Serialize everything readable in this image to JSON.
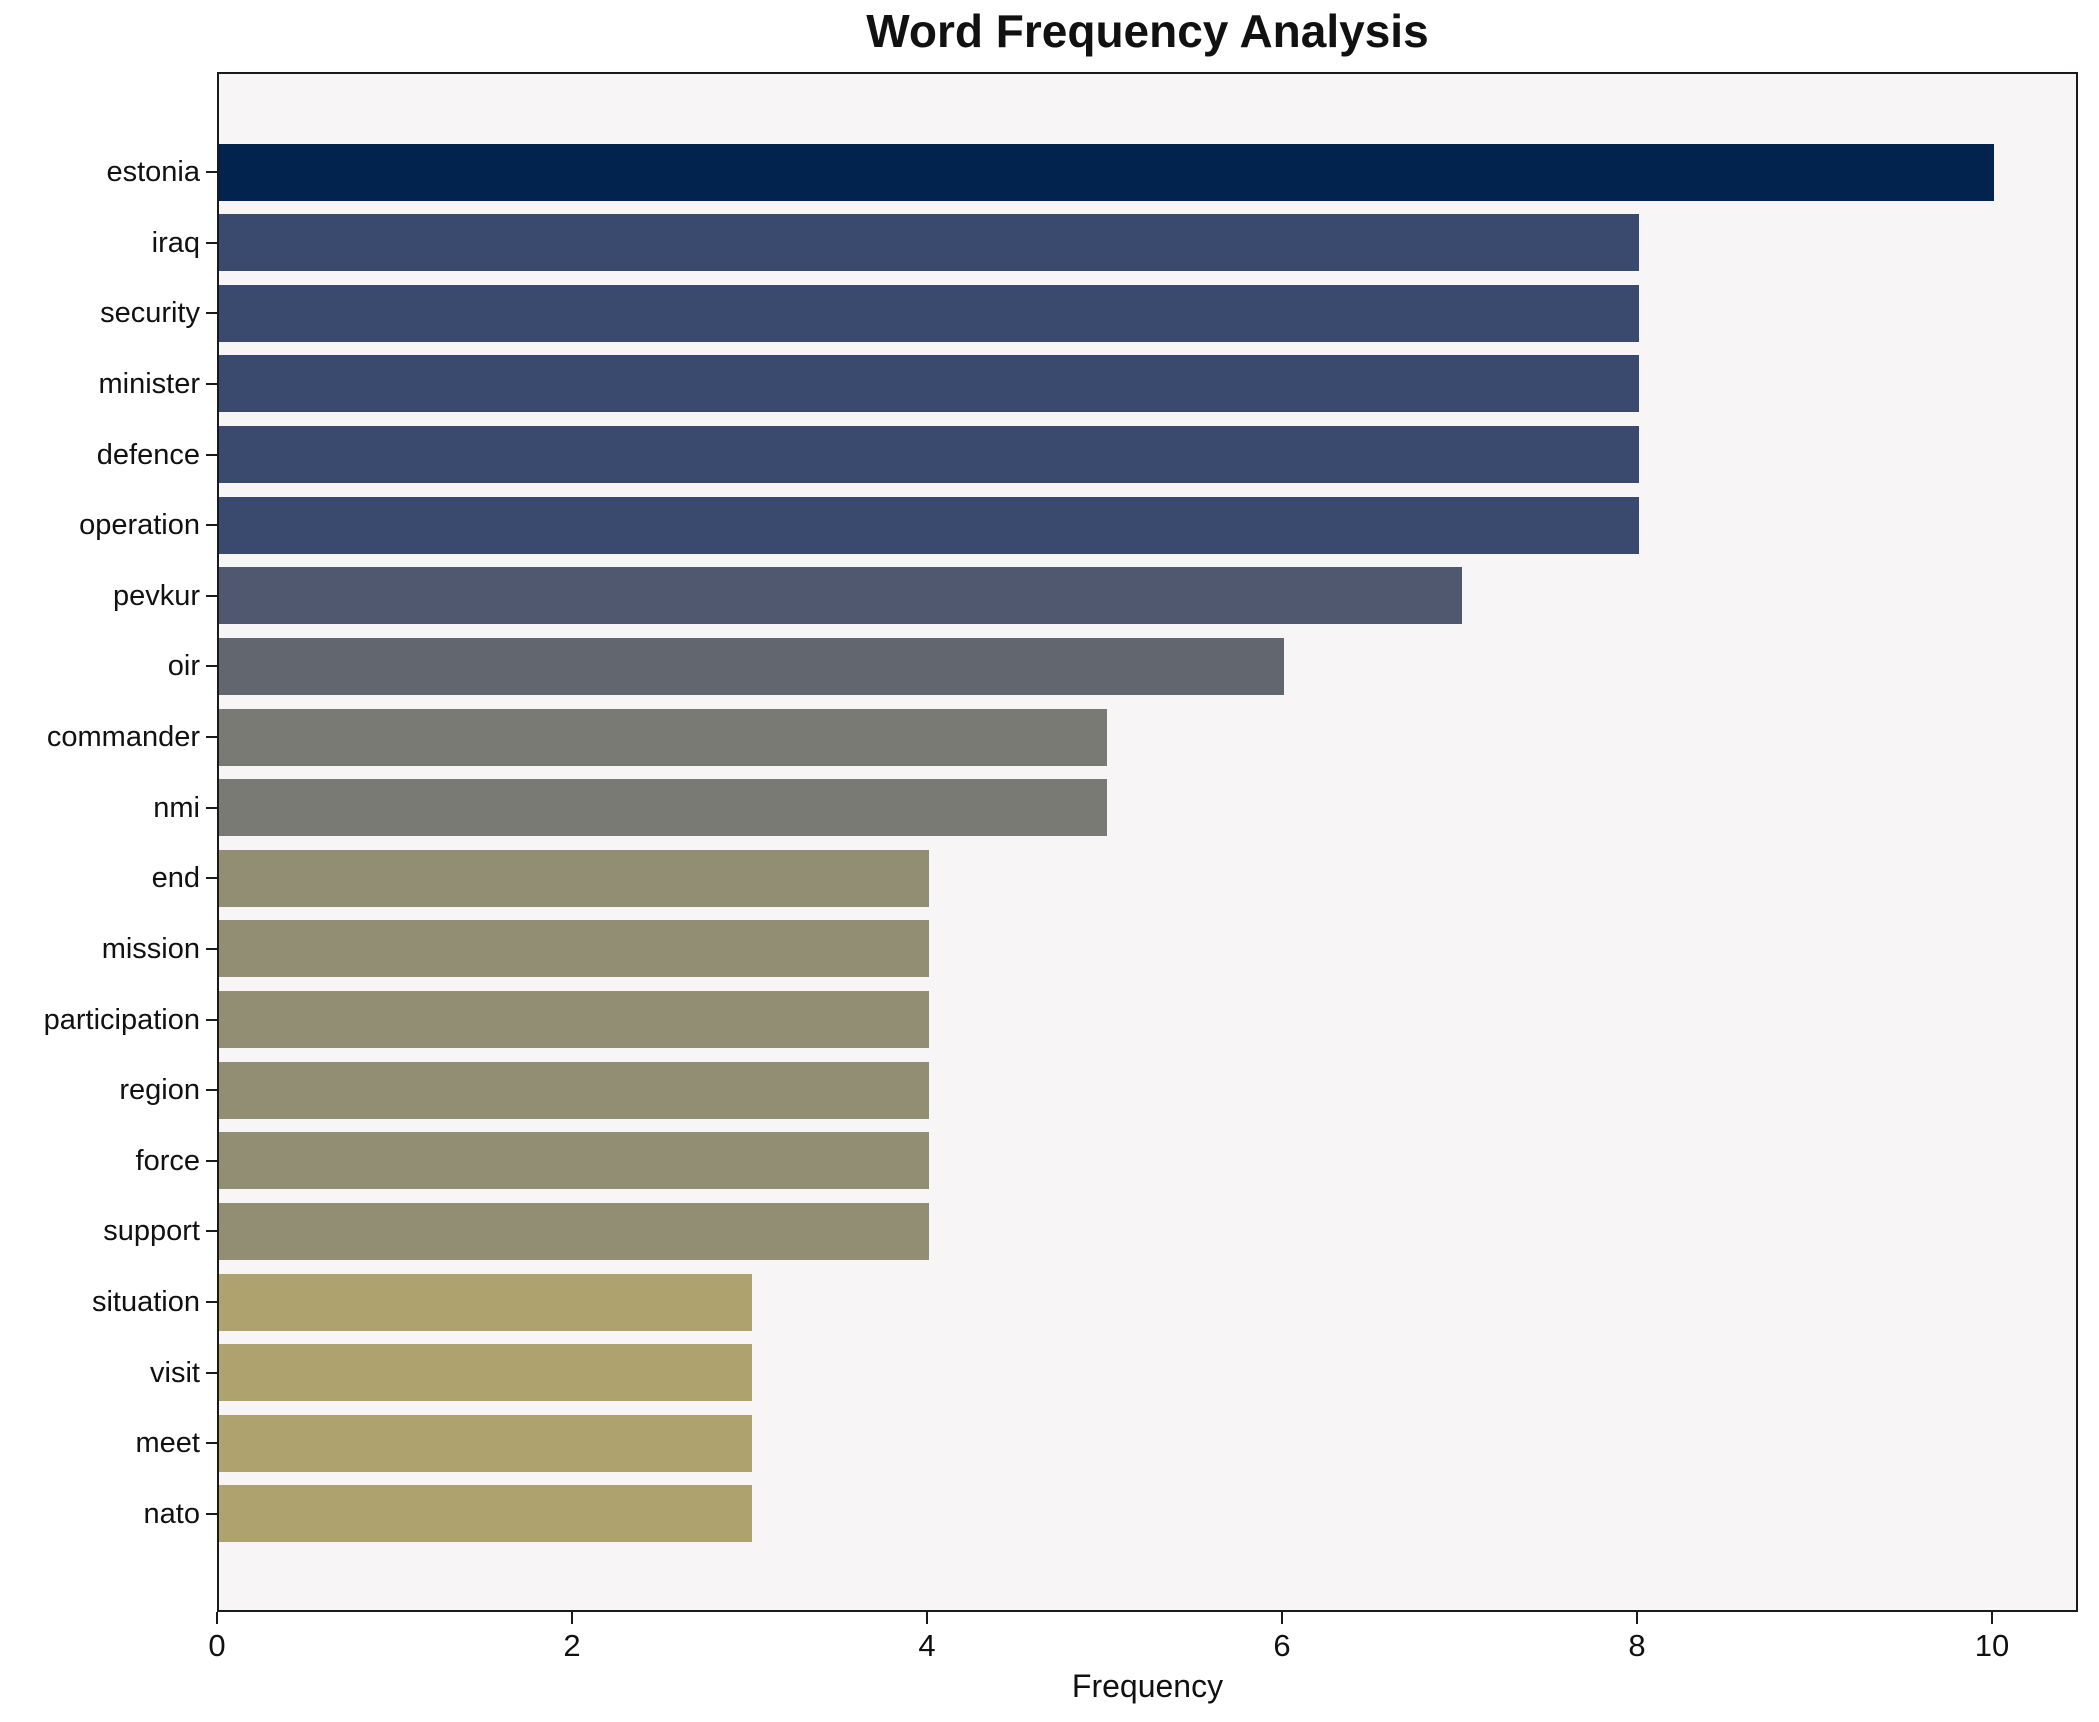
{
  "title": "Word Frequency Analysis",
  "chart_data": {
    "type": "bar",
    "orientation": "horizontal",
    "title": "Word Frequency Analysis",
    "xlabel": "Frequency",
    "ylabel": "",
    "categories": [
      "estonia",
      "iraq",
      "security",
      "minister",
      "defence",
      "operation",
      "pevkur",
      "oir",
      "commander",
      "nmi",
      "end",
      "mission",
      "participation",
      "region",
      "force",
      "support",
      "situation",
      "visit",
      "meet",
      "nato"
    ],
    "values": [
      10,
      8,
      8,
      8,
      8,
      8,
      7,
      6,
      5,
      5,
      4,
      4,
      4,
      4,
      4,
      4,
      3,
      3,
      3,
      3
    ],
    "bar_colors": [
      "#01234e",
      "#3a4a6e",
      "#3a4a6e",
      "#3a4a6e",
      "#3a4a6e",
      "#3a4a6e",
      "#50586f",
      "#62666f",
      "#7a7a74",
      "#7a7a74",
      "#918e74",
      "#918e74",
      "#918e74",
      "#918e74",
      "#918e74",
      "#918e74",
      "#aea36e",
      "#aea36e",
      "#aea36e",
      "#aea36e"
    ],
    "xticks": [
      0,
      2,
      4,
      6,
      8,
      10
    ],
    "xlim": [
      0,
      10.45
    ],
    "grid": false,
    "legend": "none",
    "plot_background": "#f7f5f6",
    "spine_color": "#1a1a1a"
  }
}
